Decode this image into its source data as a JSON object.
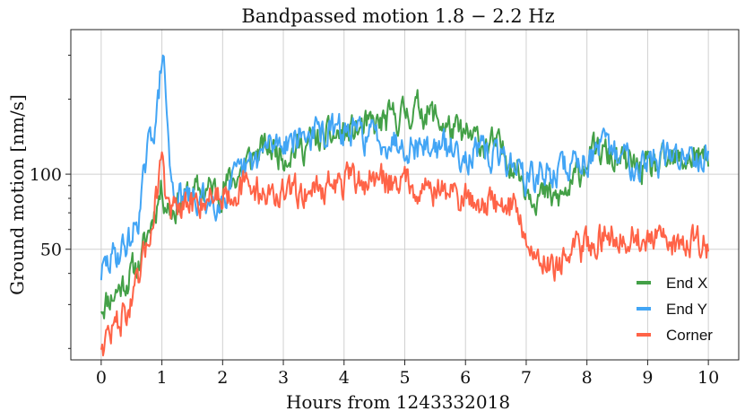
{
  "chart_data": {
    "type": "line",
    "title": "Bandpassed motion 1.8  −  2.2 Hz",
    "xlabel": "Hours from 1243332018",
    "ylabel": "Ground motion [nm/s]",
    "xlim": [
      -0.5,
      10.5
    ],
    "ylim": [
      18,
      380
    ],
    "yscale": "log",
    "grid": true,
    "legend_position": "lower-right",
    "x_ticks": [
      0,
      1,
      2,
      3,
      4,
      5,
      6,
      7,
      8,
      9,
      10
    ],
    "x_tick_labels": [
      "0",
      "1",
      "2",
      "3",
      "4",
      "5",
      "6",
      "7",
      "8",
      "9",
      "10"
    ],
    "y_ticks": [
      50,
      100
    ],
    "y_tick_labels": [
      "50",
      "100"
    ],
    "y_minor_ticks": [
      20,
      30,
      40,
      60,
      70,
      80,
      90,
      200,
      300
    ],
    "x": [
      0,
      0.25,
      0.5,
      0.65,
      0.75,
      0.85,
      0.95,
      1.0,
      1.05,
      1.15,
      1.3,
      1.5,
      1.75,
      2.0,
      2.25,
      2.5,
      2.75,
      3.0,
      3.5,
      4.0,
      4.5,
      5.0,
      5.25,
      5.5,
      5.75,
      6.0,
      6.25,
      6.5,
      6.75,
      6.9,
      7.0,
      7.25,
      7.5,
      7.75,
      8.0,
      8.25,
      8.5,
      8.75,
      9.0,
      9.25,
      9.5,
      9.75,
      10.0
    ],
    "series": [
      {
        "name": "End X",
        "color": "#43a047",
        "values": [
          30,
          34,
          40,
          45,
          55,
          68,
          82,
          88,
          80,
          72,
          78,
          84,
          86,
          88,
          100,
          118,
          128,
          122,
          135,
          145,
          155,
          175,
          185,
          170,
          150,
          140,
          135,
          128,
          115,
          100,
          90,
          82,
          78,
          88,
          118,
          122,
          112,
          108,
          103,
          108,
          112,
          118,
          112
        ]
      },
      {
        "name": "End Y",
        "color": "#42a5f5",
        "values": [
          40,
          48,
          55,
          75,
          115,
          150,
          200,
          310,
          240,
          90,
          80,
          78,
          78,
          82,
          95,
          110,
          128,
          138,
          145,
          148,
          142,
          135,
          130,
          128,
          125,
          122,
          120,
          118,
          112,
          105,
          95,
          98,
          102,
          110,
          118,
          125,
          120,
          115,
          112,
          115,
          118,
          125,
          120
        ]
      },
      {
        "name": "Corner",
        "color": "#ff6347",
        "values": [
          21,
          25,
          30,
          38,
          52,
          68,
          95,
          140,
          85,
          72,
          70,
          75,
          82,
          85,
          88,
          88,
          84,
          82,
          88,
          92,
          95,
          95,
          90,
          87,
          84,
          80,
          78,
          76,
          74,
          72,
          50,
          46,
          44,
          48,
          52,
          56,
          58,
          56,
          54,
          52,
          53,
          55,
          50
        ]
      }
    ]
  }
}
